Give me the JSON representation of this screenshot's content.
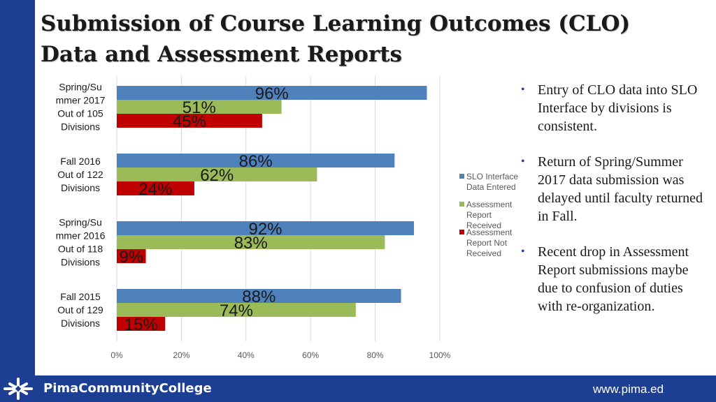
{
  "slide": {
    "title": "Submission of Course Learning Outcomes (CLO) Data and Assessment Reports"
  },
  "bullets": [
    "Entry of CLO data into SLO Interface by divisions is consistent.",
    "Return of Spring/Summer 2017 data submission was delayed until faculty returned in Fall.",
    "Recent drop in Assessment Report submissions maybe due to confusion of duties with re-organization."
  ],
  "footer": {
    "college": "PimaCommunityCollege",
    "url": "www.pima.ed"
  },
  "colors": {
    "brand_blue": "#1c3f94",
    "series_blue": "#4f81bd",
    "series_green": "#9bbb59",
    "series_red": "#c00000"
  },
  "chart_data": {
    "type": "bar",
    "orientation": "horizontal",
    "categories": [
      [
        "Spring/Su",
        "mmer 2017",
        "Out of 105",
        "Divisions"
      ],
      [
        "Fall 2016",
        "Out of 122",
        "Divisions"
      ],
      [
        "Spring/Su",
        "mmer 2016",
        "Out of 118",
        "Divisions"
      ],
      [
        "Fall 2015",
        "Out of 129",
        "Divisions"
      ]
    ],
    "series": [
      {
        "name": [
          "SLO Interface",
          "Data Entered"
        ],
        "color": "#4f81bd",
        "values": [
          96,
          86,
          92,
          88
        ],
        "labels": [
          "96%",
          "86%",
          "92%",
          "88%"
        ]
      },
      {
        "name": [
          "Assessment",
          "Report",
          "Received"
        ],
        "color": "#9bbb59",
        "values": [
          51,
          62,
          83,
          74
        ],
        "labels": [
          "51%",
          "62%",
          "83%",
          "74%"
        ]
      },
      {
        "name": [
          "Assessment",
          "Report Not",
          "Received"
        ],
        "color": "#c00000",
        "values": [
          45,
          24,
          9,
          15
        ],
        "labels": [
          "45%",
          "24%",
          "9%",
          "15%"
        ]
      }
    ],
    "x_ticks": [
      "0%",
      "20%",
      "40%",
      "60%",
      "80%",
      "100%"
    ],
    "xlim": [
      0,
      100
    ],
    "grid": true,
    "legend_position": "right",
    "title": "",
    "xlabel": "",
    "ylabel": ""
  }
}
